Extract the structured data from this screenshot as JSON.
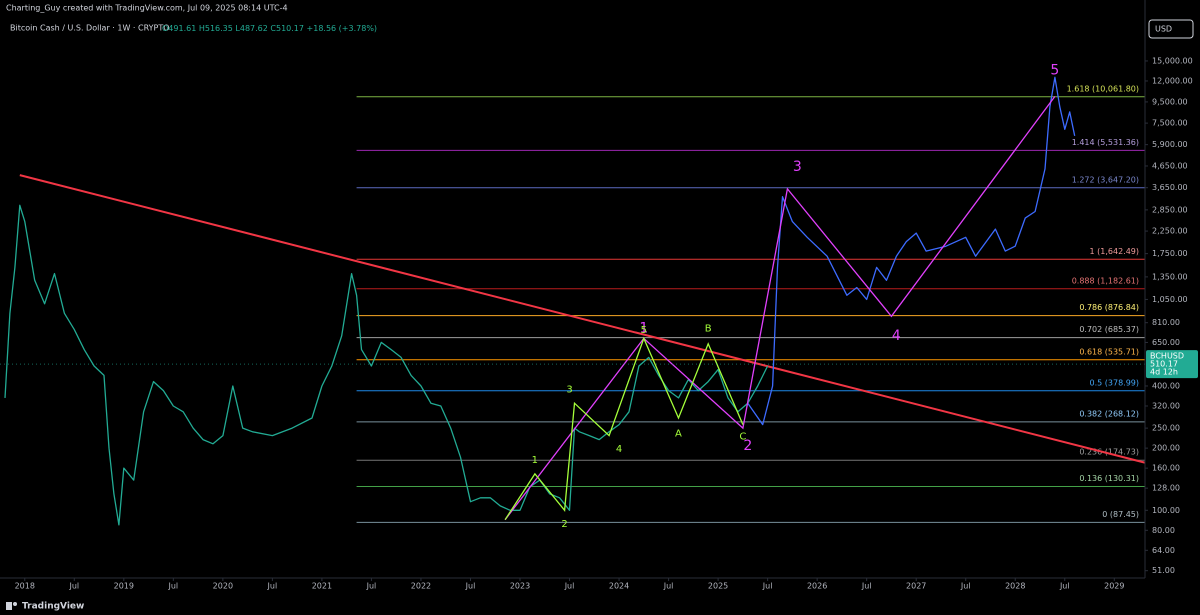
{
  "header": {
    "credit": "Charting_Guy created with TradingView.com, Jul 09, 2025 08:14 UTC-4",
    "symbol": "Bitcoin Cash / U.S. Dollar · 1W · CRYPTO",
    "ohlc": [
      "O491.61",
      "H516.35",
      "L487.62",
      "C510.17",
      "+18.56 (+3.78%)"
    ],
    "currency": "USD",
    "brand": "TradingView"
  },
  "chart_data": {
    "type": "line",
    "log_scale": true,
    "xlim": [
      2017.75,
      2029.31
    ],
    "ylim": [
      47,
      29600
    ],
    "xticks": [
      {
        "value": 2018,
        "label": "2018"
      },
      {
        "value": 2018.5,
        "label": "Jul"
      },
      {
        "value": 2019,
        "label": "2019"
      },
      {
        "value": 2019.5,
        "label": "Jul"
      },
      {
        "value": 2020,
        "label": "2020"
      },
      {
        "value": 2020.5,
        "label": "Jul"
      },
      {
        "value": 2021,
        "label": "2021"
      },
      {
        "value": 2021.5,
        "label": "Jul"
      },
      {
        "value": 2022,
        "label": "2022"
      },
      {
        "value": 2022.5,
        "label": "Jul"
      },
      {
        "value": 2023,
        "label": "2023"
      },
      {
        "value": 2023.5,
        "label": "Jul"
      },
      {
        "value": 2024,
        "label": "2024"
      },
      {
        "value": 2024.5,
        "label": "Jul"
      },
      {
        "value": 2025,
        "label": "2025"
      },
      {
        "value": 2025.5,
        "label": "Jul"
      },
      {
        "value": 2026,
        "label": "2026"
      },
      {
        "value": 2026.5,
        "label": "Jul"
      },
      {
        "value": 2027,
        "label": "2027"
      },
      {
        "value": 2027.5,
        "label": "Jul"
      },
      {
        "value": 2028,
        "label": "2028"
      },
      {
        "value": 2028.5,
        "label": "Jul"
      },
      {
        "value": 2029,
        "label": "2029"
      }
    ],
    "yticks": [
      {
        "value": 15000,
        "label": "15,000.00"
      },
      {
        "value": 12000,
        "label": "12,000.00"
      },
      {
        "value": 9500,
        "label": "9,500.00"
      },
      {
        "value": 7500,
        "label": "7,500.00"
      },
      {
        "value": 5900,
        "label": "5,900.00"
      },
      {
        "value": 4650,
        "label": "4,650.00"
      },
      {
        "value": 3650,
        "label": "3,650.00"
      },
      {
        "value": 2850,
        "label": "2,850.00"
      },
      {
        "value": 2250,
        "label": "2,250.00"
      },
      {
        "value": 1750,
        "label": "1,750.00"
      },
      {
        "value": 1350,
        "label": "1,350.00"
      },
      {
        "value": 1050,
        "label": "1,050.00"
      },
      {
        "value": 810,
        "label": "810.00"
      },
      {
        "value": 650,
        "label": "650.00"
      },
      {
        "value": 400,
        "label": "400.00"
      },
      {
        "value": 320,
        "label": "320.00"
      },
      {
        "value": 250,
        "label": "250.00"
      },
      {
        "value": 200,
        "label": "200.00"
      },
      {
        "value": 160,
        "label": "160.00"
      },
      {
        "value": 128,
        "label": "128.00"
      },
      {
        "value": 100,
        "label": "100.00"
      },
      {
        "value": 80,
        "label": "80.00"
      },
      {
        "value": 64,
        "label": "64.00"
      },
      {
        "value": 51,
        "label": "51.00"
      }
    ],
    "series": [
      {
        "color": "#22ab94",
        "x": [
          2017.8,
          2017.85,
          2017.9,
          2017.95,
          2018.0,
          2018.1,
          2018.2,
          2018.3,
          2018.4,
          2018.5,
          2018.6,
          2018.7,
          2018.8,
          2018.85,
          2018.9,
          2018.95,
          2019.0,
          2019.1,
          2019.2,
          2019.3,
          2019.4,
          2019.5,
          2019.6,
          2019.7,
          2019.8,
          2019.9,
          2020.0,
          2020.1,
          2020.2,
          2020.3,
          2020.5,
          2020.7,
          2020.9,
          2021.0,
          2021.1,
          2021.2,
          2021.3,
          2021.35,
          2021.4,
          2021.5,
          2021.6,
          2021.7,
          2021.8,
          2021.9,
          2022.0,
          2022.1,
          2022.2,
          2022.3,
          2022.4,
          2022.5,
          2022.6,
          2022.7,
          2022.8,
          2022.9,
          2023.0,
          2023.1,
          2023.2,
          2023.3,
          2023.4,
          2023.5,
          2023.55,
          2023.6,
          2023.7,
          2023.8,
          2023.9,
          2024.0,
          2024.1,
          2024.2,
          2024.3,
          2024.4,
          2024.5,
          2024.6,
          2024.7,
          2024.8,
          2024.9,
          2025.0,
          2025.1,
          2025.2,
          2025.3,
          2025.4,
          2025.5
        ],
        "values": [
          350,
          900,
          1500,
          3000,
          2500,
          1300,
          1000,
          1400,
          900,
          750,
          600,
          500,
          450,
          200,
          120,
          85,
          160,
          140,
          300,
          420,
          380,
          320,
          300,
          250,
          220,
          210,
          230,
          400,
          250,
          240,
          230,
          250,
          280,
          400,
          500,
          700,
          1400,
          1100,
          600,
          500,
          650,
          600,
          550,
          450,
          400,
          330,
          320,
          250,
          180,
          110,
          115,
          115,
          105,
          100,
          100,
          130,
          140,
          120,
          115,
          100,
          250,
          240,
          230,
          220,
          240,
          260,
          300,
          500,
          550,
          450,
          380,
          350,
          430,
          380,
          420,
          480,
          350,
          300,
          330,
          400,
          500
        ]
      },
      {
        "color": "#3d6bff",
        "x": [
          2025.3,
          2025.45,
          2025.55,
          2025.6,
          2025.65,
          2025.75,
          2025.9,
          2026.1,
          2026.3,
          2026.4,
          2026.5,
          2026.6,
          2026.7,
          2026.8,
          2026.9,
          2027.0,
          2027.1,
          2027.3,
          2027.5,
          2027.6,
          2027.8,
          2027.9,
          2028.0,
          2028.1,
          2028.2,
          2028.3,
          2028.35,
          2028.4,
          2028.45,
          2028.5,
          2028.55,
          2028.6
        ],
        "values": [
          330,
          260,
          400,
          1500,
          3300,
          2500,
          2100,
          1700,
          1100,
          1200,
          1050,
          1500,
          1300,
          1700,
          2000,
          2200,
          1800,
          1900,
          2100,
          1700,
          2300,
          1800,
          1900,
          2600,
          2800,
          4500,
          9000,
          12500,
          9000,
          7000,
          8500,
          6500
        ]
      }
    ],
    "fib_start": 2021.35,
    "fib_levels": [
      {
        "label": "1.618 (10,061.80)",
        "value": 10061.8,
        "color": "#7cb342",
        "text_color": "#d4e157"
      },
      {
        "label": "1.414 (5,531.36)",
        "value": 5531.36,
        "color": "#9c27b0",
        "text_color": "#b39ddb"
      },
      {
        "label": "1.272 (3,647.20)",
        "value": 3647.2,
        "color": "#5c6bc0",
        "text_color": "#7986cb"
      },
      {
        "label": "1 (1,642.49)",
        "value": 1642.49,
        "color": "#e53935",
        "text_color": "#ef9a9a"
      },
      {
        "label": "0.888 (1,182.61)",
        "value": 1182.61,
        "color": "#b71c1c",
        "text_color": "#e57373"
      },
      {
        "label": "0.786 (876.84)",
        "value": 876.84,
        "color": "#f9a825",
        "text_color": "#fff176"
      },
      {
        "label": "0.702 (685.37)",
        "value": 685.37,
        "color": "#9e9e9e",
        "text_color": "#bdbdbd"
      },
      {
        "label": "0.618 (535.71)",
        "value": 535.71,
        "color": "#ff9800",
        "text_color": "#ffb74d"
      },
      {
        "label": "0.5 (378.99)",
        "value": 378.99,
        "color": "#1e88e5",
        "text_color": "#42a5f5"
      },
      {
        "label": "0.382 (268.12)",
        "value": 268.12,
        "color": "#78909c",
        "text_color": "#90caf9"
      },
      {
        "label": "0.236 (174.73)",
        "value": 174.73,
        "color": "#757575",
        "text_color": "#9e9e9e"
      },
      {
        "label": "0.136 (130.31)",
        "value": 130.31,
        "color": "#43a047",
        "text_color": "#a5d6a7"
      },
      {
        "label": "0 (87.45)",
        "value": 87.45,
        "color": "#78909c",
        "text_color": "#b0bec5"
      }
    ],
    "trend_line": {
      "color": "#f23645",
      "x": [
        2017.95,
        2029.31
      ],
      "y": [
        4200,
        170
      ]
    },
    "wave_lines": [
      {
        "color": "#e040fb",
        "x": [
          2022.85,
          2024.25,
          2025.25,
          2025.7,
          2026.75,
          2028.4
        ],
        "y": [
          90,
          680,
          250,
          3600,
          870,
          10100
        ]
      },
      {
        "color": "#a5ff3a",
        "x": [
          2022.85,
          2023.15,
          2023.45,
          2023.55,
          2023.9,
          2024.25,
          2024.6,
          2024.9,
          2025.25
        ],
        "y": [
          90,
          150,
          100,
          330,
          230,
          680,
          280,
          640,
          260
        ]
      }
    ],
    "wave_labels": [
      {
        "text": "1",
        "x": 2024.25,
        "y": 760,
        "color": "#e040fb",
        "size": "major"
      },
      {
        "text": "2",
        "x": 2025.3,
        "y": 205,
        "color": "#e040fb",
        "size": "major"
      },
      {
        "text": "3",
        "x": 2025.8,
        "y": 4600,
        "color": "#e040fb",
        "size": "major"
      },
      {
        "text": "4",
        "x": 2026.8,
        "y": 700,
        "color": "#e040fb",
        "size": "major"
      },
      {
        "text": "5",
        "x": 2028.4,
        "y": 13500,
        "color": "#e040fb",
        "size": "major"
      },
      {
        "text": "1",
        "x": 2023.15,
        "y": 175,
        "color": "#a5ff3a",
        "size": "minor"
      },
      {
        "text": "2",
        "x": 2023.45,
        "y": 86,
        "color": "#a5ff3a",
        "size": "minor"
      },
      {
        "text": "3",
        "x": 2023.5,
        "y": 385,
        "color": "#a5ff3a",
        "size": "minor"
      },
      {
        "text": "4",
        "x": 2024.0,
        "y": 198,
        "color": "#a5ff3a",
        "size": "minor"
      },
      {
        "text": "5",
        "x": 2024.25,
        "y": 745,
        "color": "#a5ff3a",
        "size": "minor"
      },
      {
        "text": "A",
        "x": 2024.6,
        "y": 235,
        "color": "#a5ff3a",
        "size": "minor"
      },
      {
        "text": "B",
        "x": 2024.9,
        "y": 760,
        "color": "#a5ff3a",
        "size": "minor"
      },
      {
        "text": "C",
        "x": 2025.25,
        "y": 228,
        "color": "#a5ff3a",
        "size": "minor"
      }
    ],
    "price_tag": {
      "symbol": "BCHUSD",
      "value": 510.17,
      "countdown": "4d 12h",
      "color": "#22ab94"
    }
  }
}
